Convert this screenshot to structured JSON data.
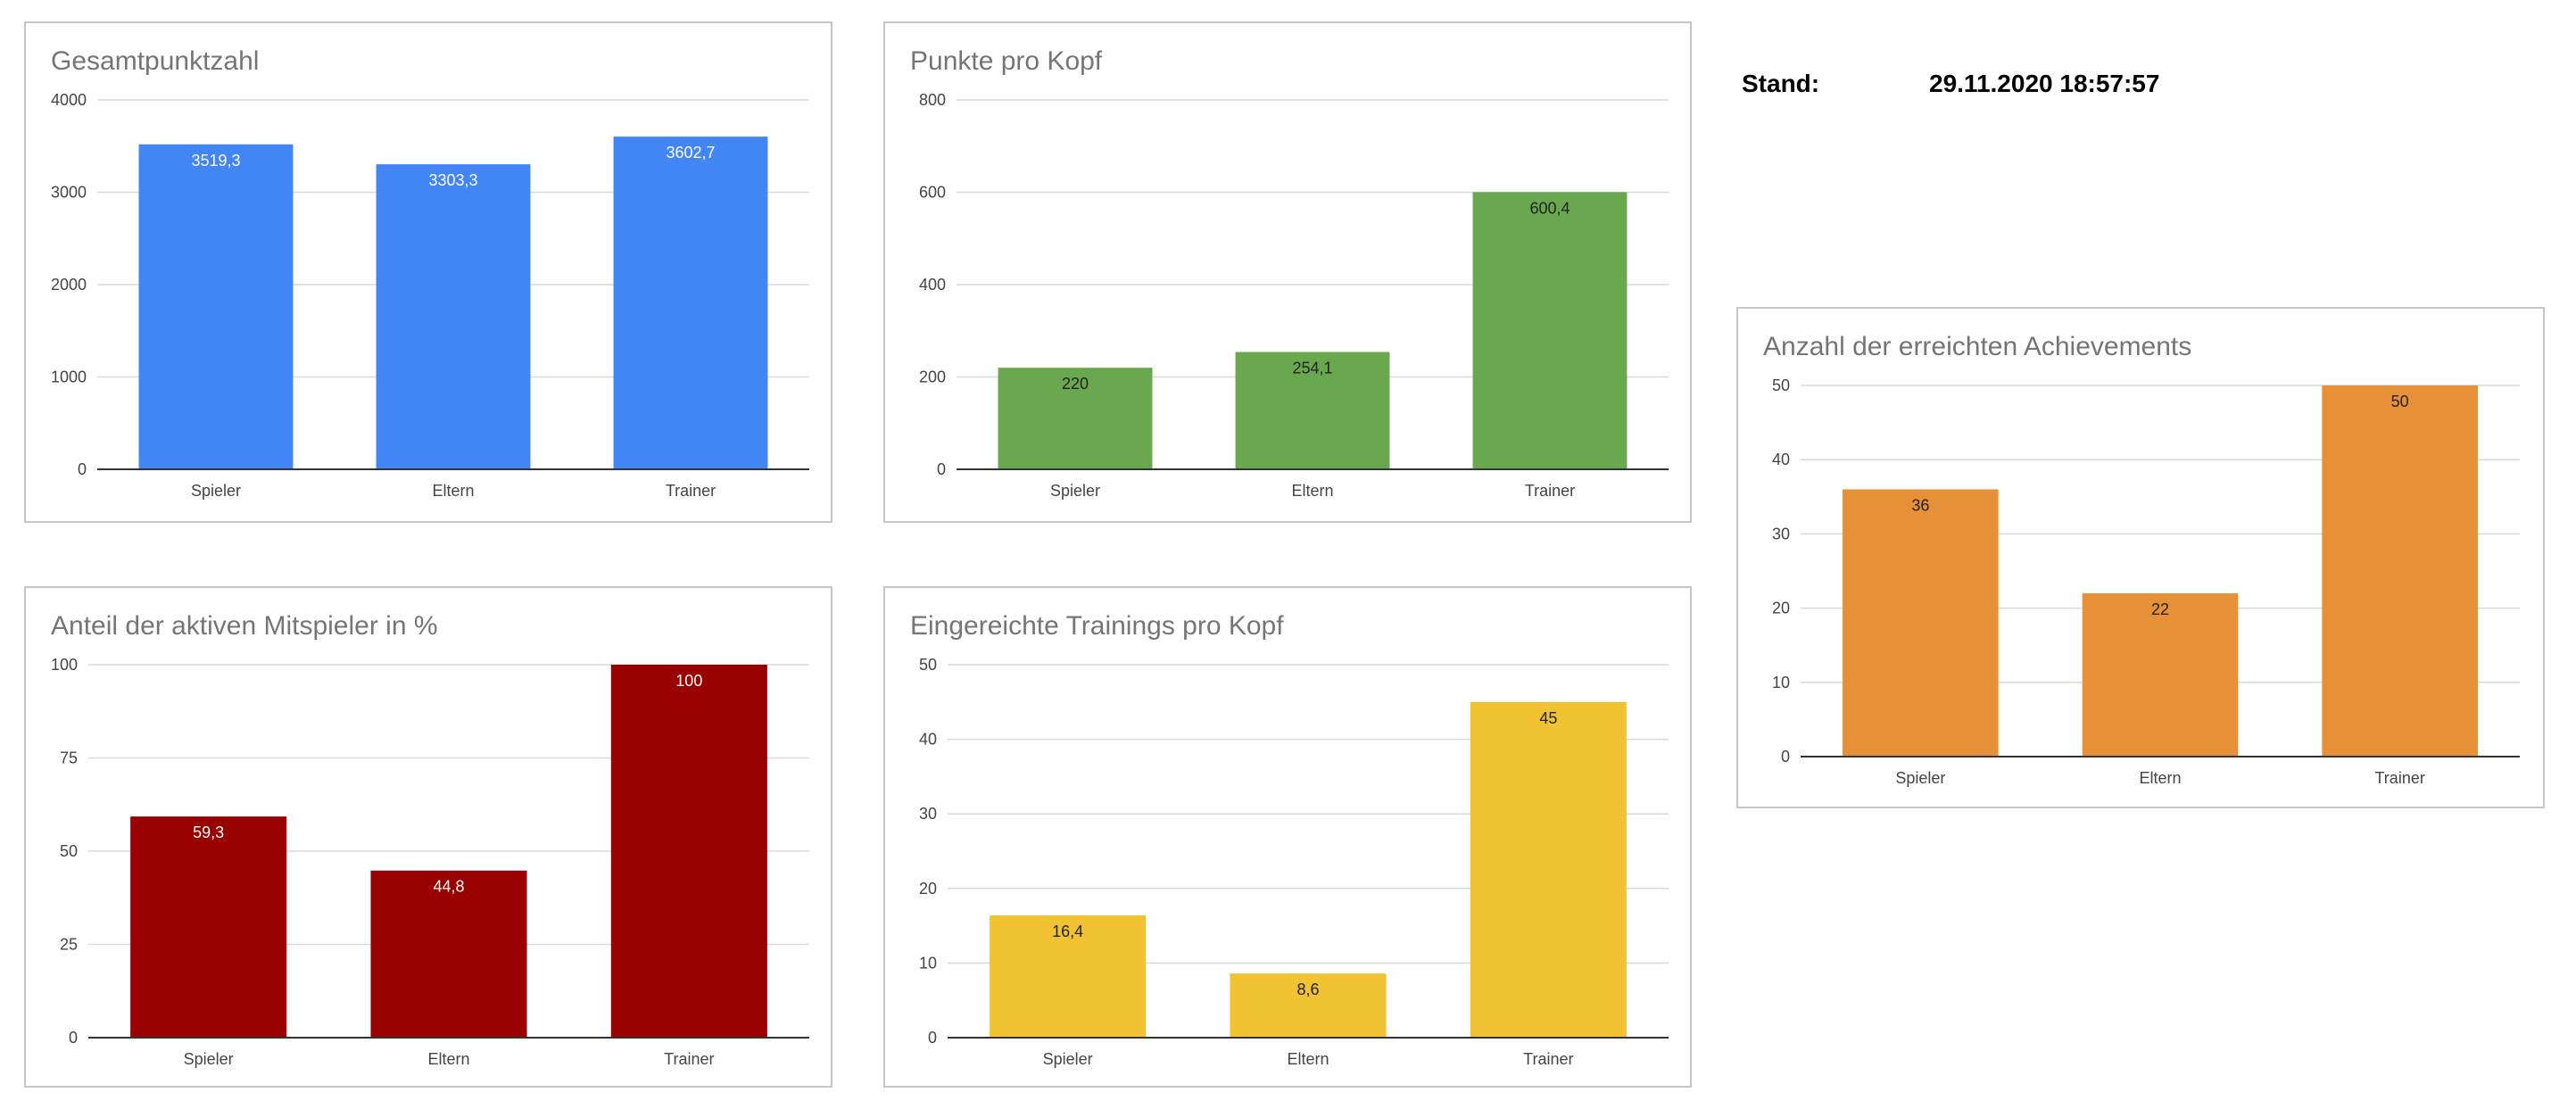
{
  "stand": {
    "label": "Stand:",
    "value": "29.11.2020 18:57:57"
  },
  "chart_data": [
    {
      "type": "bar",
      "title": "Gesamtpunktzahl",
      "categories": [
        "Spieler",
        "Eltern",
        "Trainer"
      ],
      "values": [
        3519.3,
        3303.3,
        3602.7
      ],
      "value_labels": [
        "3519,3",
        "3303,3",
        "3602,7"
      ],
      "yticks": [
        "0",
        "1000",
        "2000",
        "3000",
        "4000"
      ],
      "ylim": [
        0,
        4000
      ],
      "color": "#4285f4",
      "label_color": "#ffffff",
      "grid": true,
      "legend": "none"
    },
    {
      "type": "bar",
      "title": "Punkte pro Kopf",
      "categories": [
        "Spieler",
        "Eltern",
        "Trainer"
      ],
      "values": [
        220,
        254.1,
        600.4
      ],
      "value_labels": [
        "220",
        "254,1",
        "600,4"
      ],
      "yticks": [
        "0",
        "200",
        "400",
        "600",
        "800"
      ],
      "ylim": [
        0,
        800
      ],
      "color": "#6aa84f",
      "label_color": "#222222",
      "grid": true,
      "legend": "none"
    },
    {
      "type": "bar",
      "title": "Anzahl der erreichten Achievements",
      "categories": [
        "Spieler",
        "Eltern",
        "Trainer"
      ],
      "values": [
        36,
        22,
        50
      ],
      "value_labels": [
        "36",
        "22",
        "50"
      ],
      "yticks": [
        "0",
        "10",
        "20",
        "30",
        "40",
        "50"
      ],
      "ylim": [
        0,
        50
      ],
      "color": "#e69138",
      "label_color": "#222222",
      "grid": true,
      "legend": "none"
    },
    {
      "type": "bar",
      "title": "Anteil der aktiven Mitspieler in %",
      "categories": [
        "Spieler",
        "Eltern",
        "Trainer"
      ],
      "values": [
        59.3,
        44.8,
        100
      ],
      "value_labels": [
        "59,3",
        "44,8",
        "100"
      ],
      "yticks": [
        "0",
        "25",
        "50",
        "75",
        "100"
      ],
      "ylim": [
        0,
        100
      ],
      "color": "#990000",
      "label_color": "#ffffff",
      "grid": true,
      "legend": "none"
    },
    {
      "type": "bar",
      "title": "Eingereichte Trainings pro Kopf",
      "categories": [
        "Spieler",
        "Eltern",
        "Trainer"
      ],
      "values": [
        16.4,
        8.6,
        45
      ],
      "value_labels": [
        "16,4",
        "8,6",
        "45"
      ],
      "yticks": [
        "0",
        "10",
        "20",
        "30",
        "40",
        "50"
      ],
      "ylim": [
        0,
        50
      ],
      "color": "#f1c232",
      "label_color": "#222222",
      "grid": true,
      "legend": "none"
    }
  ]
}
